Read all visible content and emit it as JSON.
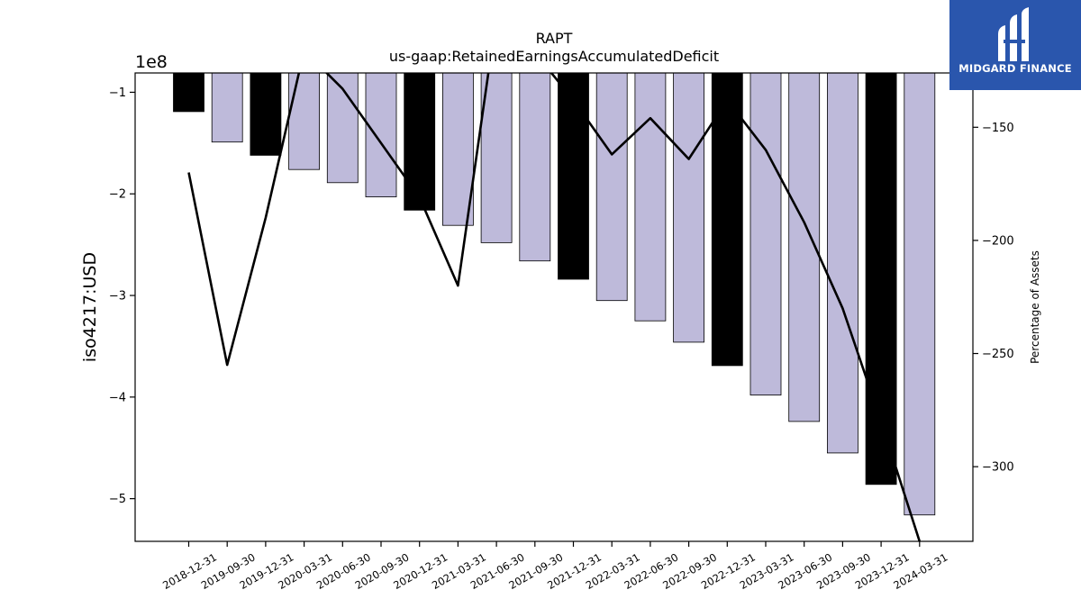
{
  "chart_data": {
    "type": "bar",
    "title": "RAPT",
    "subtitle": "us-gaap:RetainedEarningsAccumulatedDeficit",
    "ylabel": "iso4217:USD",
    "y_scale_label": "1e8",
    "y2label": "Percentage of Assets",
    "categories": [
      "2018-12-31",
      "2019-09-30",
      "2019-12-31",
      "2020-03-31",
      "2020-06-30",
      "2020-09-30",
      "2020-12-31",
      "2021-03-31",
      "2021-06-30",
      "2021-09-30",
      "2021-12-31",
      "2022-03-31",
      "2022-06-30",
      "2022-09-30",
      "2022-12-31",
      "2023-03-31",
      "2023-06-30",
      "2023-09-30",
      "2023-12-31",
      "2024-03-31"
    ],
    "series": [
      {
        "type": "bar",
        "axis": "left",
        "values": [
          -119000000.0,
          -149000000.0,
          -162000000.0,
          -176000000.0,
          -189000000.0,
          -203000000.0,
          -216000000.0,
          -231000000.0,
          -248000000.0,
          -266000000.0,
          -284000000.0,
          -305000000.0,
          -325000000.0,
          -346000000.0,
          -369000000.0,
          -398000000.0,
          -424000000.0,
          -455000000.0,
          -486000000.0,
          -516000000.0
        ],
        "colors": [
          "#000000",
          "#bebada",
          "#000000",
          "#bebada",
          "#bebada",
          "#bebada",
          "#000000",
          "#bebada",
          "#bebada",
          "#bebada",
          "#000000",
          "#bebada",
          "#bebada",
          "#bebada",
          "#000000",
          "#bebada",
          "#bebada",
          "#bebada",
          "#000000",
          "#bebada"
        ]
      },
      {
        "type": "line",
        "axis": "right",
        "color": "#000000",
        "values": [
          -170,
          -255,
          -190,
          -116,
          -133,
          -157,
          -181,
          -220,
          -101,
          -117,
          -138,
          -162,
          -146,
          -164,
          -138,
          -160,
          -192,
          -230,
          -280,
          -333
        ]
      }
    ],
    "ylim": [
      -542000000.0,
      -81000000.0
    ],
    "yticks": [
      -1,
      -2,
      -3,
      -4,
      -5
    ],
    "y2lim": [
      -333,
      -126
    ],
    "y2ticks": [
      -150,
      -200,
      -250,
      -300
    ]
  },
  "logo": {
    "text": "MIDGARD FINANCE",
    "bg": "#2a56ad"
  }
}
